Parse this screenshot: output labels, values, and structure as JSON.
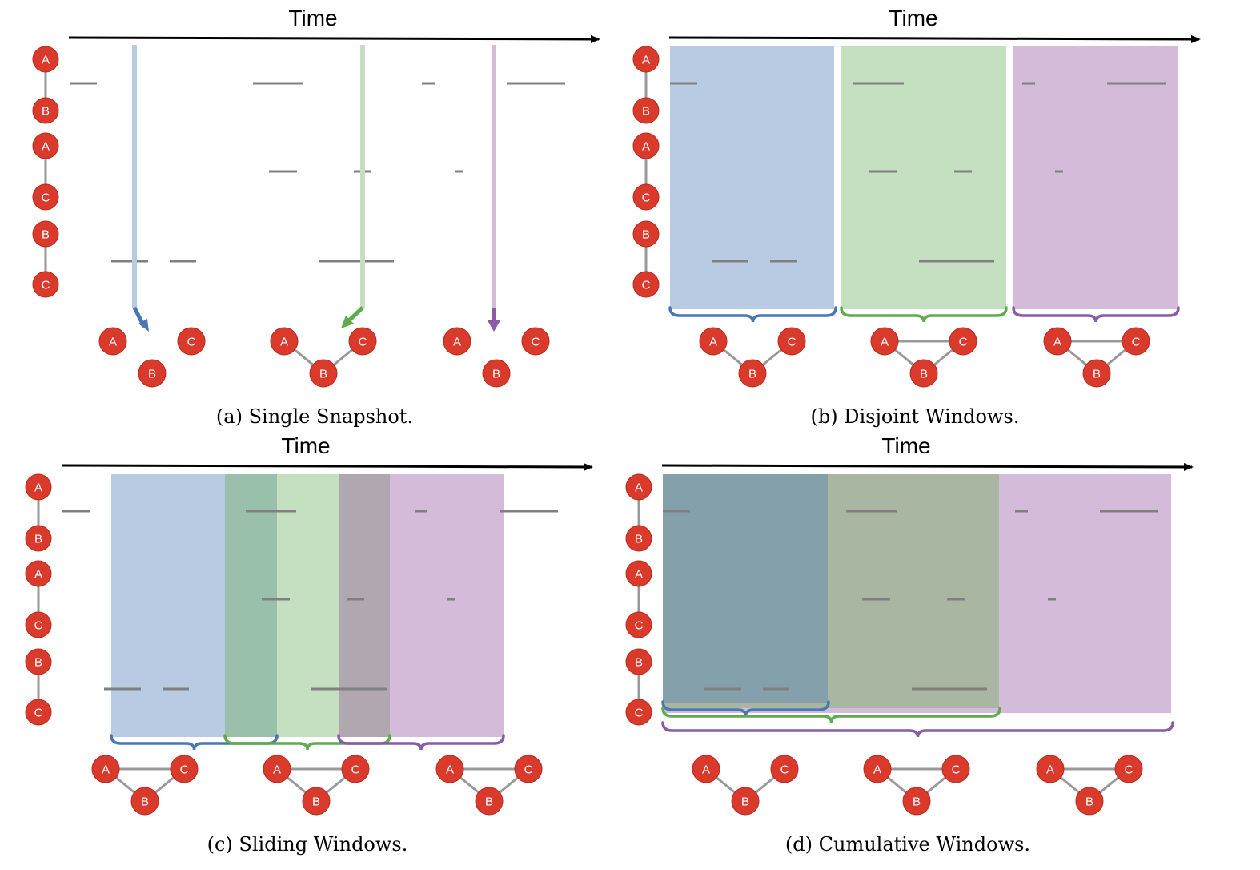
{
  "axis_title": "Time",
  "node_labels": {
    "a": "A",
    "b": "B",
    "c": "C"
  },
  "colors": {
    "node_fill": "#d93a2b",
    "node_stroke": "#b72a1c",
    "edge": "#999999",
    "interval": "#808080",
    "axis": "#000000",
    "blue": "#4a77b4",
    "green": "#5fab4e",
    "purple": "#8a5ba6",
    "blue_fill": "#b8cbe2",
    "green_fill": "#c5e0c0",
    "purple_fill": "#d4bbd9",
    "blue_green_overlap": "#99c0ab",
    "green_purple_overlap": "#b0a7b1",
    "cumulative_blue": "#84a1ab",
    "cumulative_green": "#a9b6a2",
    "cumulative_purple": "#d4bbd9"
  },
  "panels": [
    {
      "id": "a",
      "caption": "(a) Single Snapshot."
    },
    {
      "id": "b",
      "caption": "(b) Disjoint Windows."
    },
    {
      "id": "c",
      "caption": "(c) Sliding Windows."
    },
    {
      "id": "d",
      "caption": "(d) Cumulative Windows."
    }
  ]
}
